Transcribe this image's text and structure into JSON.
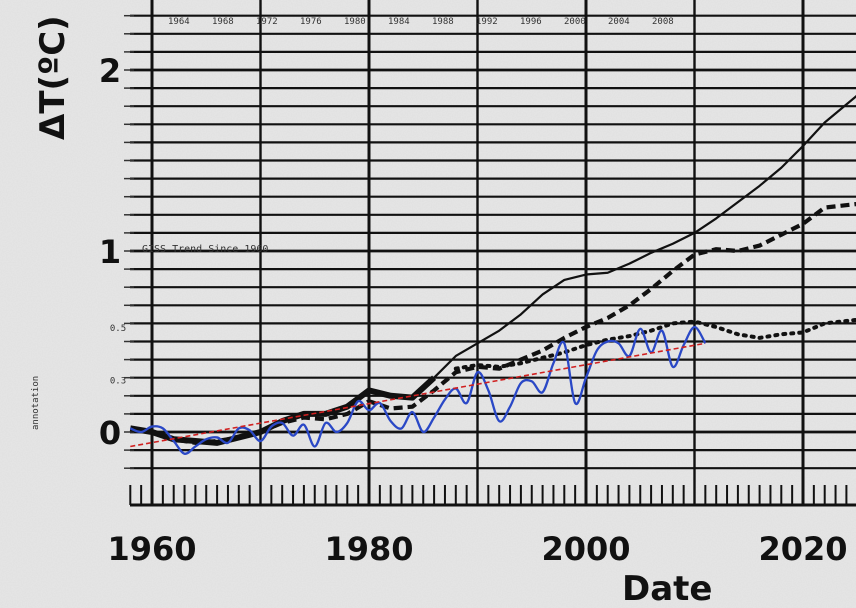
{
  "chart_data": {
    "type": "line",
    "title": "",
    "xlabel": "Date",
    "ylabel": "ΔT(ºC)",
    "xlim": [
      1958,
      2025
    ],
    "ylim": [
      -0.25,
      2.35
    ],
    "grid": true,
    "x_ticks": [
      1960,
      1980,
      2000,
      2020
    ],
    "y_ticks": [
      0,
      1,
      2
    ],
    "minor_y_tick_labels": [
      "0.5",
      "0.3"
    ],
    "top_year_labels": [
      "1964",
      "1968",
      "1972",
      "1976",
      "1980",
      "1984",
      "1988",
      "1992",
      "1996",
      "2000",
      "2004",
      "2008"
    ],
    "annotations": [
      {
        "text": "GISS Trend Since 1960"
      }
    ],
    "side_note": "annotation",
    "series": [
      {
        "style": "solid-black",
        "color": "#111111",
        "x": [
          1958,
          1960,
          1962,
          1964,
          1966,
          1968,
          1970,
          1972,
          1974,
          1976,
          1978,
          1980,
          1982,
          1984,
          1986,
          1988,
          1990,
          1992,
          1994,
          1996,
          1998,
          2000,
          2002,
          2004,
          2006,
          2008,
          2010,
          2012,
          2014,
          2016,
          2018,
          2020,
          2022,
          2025
        ],
        "y": [
          0.02,
          0.0,
          -0.04,
          -0.05,
          -0.06,
          -0.03,
          0.0,
          0.06,
          0.1,
          0.1,
          0.14,
          0.23,
          0.2,
          0.19,
          0.3,
          0.42,
          0.49,
          0.56,
          0.65,
          0.76,
          0.84,
          0.87,
          0.88,
          0.93,
          0.99,
          1.04,
          1.1,
          1.18,
          1.27,
          1.36,
          1.46,
          1.58,
          1.71,
          1.86
        ]
      },
      {
        "style": "dashed-black",
        "color": "#111111",
        "x": [
          1960,
          1962,
          1964,
          1966,
          1968,
          1970,
          1972,
          1974,
          1976,
          1978,
          1980,
          1982,
          1984,
          1986,
          1988,
          1990,
          1992,
          1994,
          1996,
          1998,
          2000,
          2002,
          2004,
          2006,
          2008,
          2010,
          2012,
          2014,
          2016,
          2018,
          2020,
          2022,
          2025
        ],
        "y": [
          0.0,
          -0.04,
          -0.06,
          -0.05,
          -0.03,
          0.0,
          0.05,
          0.08,
          0.07,
          0.1,
          0.17,
          0.13,
          0.14,
          0.23,
          0.33,
          0.36,
          0.35,
          0.4,
          0.45,
          0.52,
          0.58,
          0.63,
          0.7,
          0.79,
          0.89,
          0.98,
          1.01,
          1.0,
          1.03,
          1.09,
          1.15,
          1.24,
          1.26
        ]
      },
      {
        "style": "dotted-black",
        "color": "#111111",
        "x": [
          1988,
          1990,
          1992,
          1994,
          1996,
          1998,
          2000,
          2002,
          2004,
          2006,
          2008,
          2010,
          2012,
          2014,
          2016,
          2018,
          2020,
          2022,
          2025
        ],
        "y": [
          0.35,
          0.37,
          0.36,
          0.38,
          0.41,
          0.44,
          0.48,
          0.51,
          0.53,
          0.56,
          0.6,
          0.61,
          0.58,
          0.54,
          0.52,
          0.54,
          0.55,
          0.6,
          0.62
        ]
      },
      {
        "style": "solid-blue",
        "color": "#2a48c6",
        "x": [
          1958,
          1959,
          1960,
          1961,
          1962,
          1963,
          1964,
          1965,
          1966,
          1967,
          1968,
          1969,
          1970,
          1971,
          1972,
          1973,
          1974,
          1975,
          1976,
          1977,
          1978,
          1979,
          1980,
          1981,
          1982,
          1983,
          1984,
          1985,
          1986,
          1987,
          1988,
          1989,
          1990,
          1991,
          1992,
          1993,
          1994,
          1995,
          1996,
          1997,
          1998,
          1999,
          2000,
          2001,
          2002,
          2003,
          2004,
          2005,
          2006,
          2007,
          2008,
          2009,
          2010,
          2011
        ],
        "y": [
          0.02,
          0.0,
          0.03,
          0.02,
          -0.05,
          -0.12,
          -0.08,
          -0.04,
          -0.03,
          -0.06,
          0.02,
          0.01,
          -0.05,
          0.03,
          0.05,
          -0.02,
          0.04,
          -0.08,
          0.05,
          0.0,
          0.05,
          0.17,
          0.12,
          0.16,
          0.06,
          0.02,
          0.11,
          0.0,
          0.08,
          0.18,
          0.24,
          0.16,
          0.33,
          0.23,
          0.06,
          0.14,
          0.27,
          0.28,
          0.22,
          0.38,
          0.49,
          0.16,
          0.3,
          0.45,
          0.5,
          0.49,
          0.42,
          0.57,
          0.44,
          0.56,
          0.36,
          0.48,
          0.58,
          0.49
        ]
      },
      {
        "style": "dashed-red",
        "color": "#d02020",
        "x": [
          1958,
          2011
        ],
        "y": [
          -0.08,
          0.49
        ]
      }
    ]
  }
}
